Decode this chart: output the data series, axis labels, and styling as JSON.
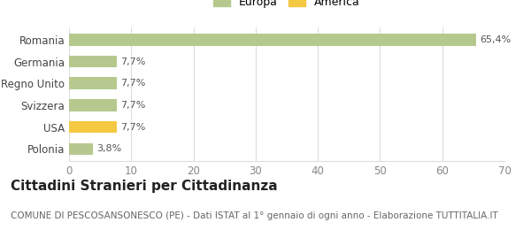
{
  "categories": [
    "Polonia",
    "USA",
    "Svizzera",
    "Regno Unito",
    "Germania",
    "Romania"
  ],
  "values": [
    3.8,
    7.7,
    7.7,
    7.7,
    7.7,
    65.4
  ],
  "labels": [
    "3,8%",
    "7,7%",
    "7,7%",
    "7,7%",
    "7,7%",
    "65,4%"
  ],
  "colors": [
    "#b5c98e",
    "#f5c842",
    "#b5c98e",
    "#b5c98e",
    "#b5c98e",
    "#b5c98e"
  ],
  "legend_items": [
    {
      "label": "Europa",
      "color": "#b5c98e"
    },
    {
      "label": "America",
      "color": "#f5c842"
    }
  ],
  "xlim": [
    0,
    70
  ],
  "xticks": [
    0,
    10,
    20,
    30,
    40,
    50,
    60,
    70
  ],
  "title": "Cittadini Stranieri per Cittadinanza",
  "subtitle": "COMUNE DI PESCOSANSONESCO (PE) - Dati ISTAT al 1° gennaio di ogni anno - Elaborazione TUTTITALIA.IT",
  "background_color": "#ffffff",
  "grid_color": "#dddddd",
  "bar_label_fontsize": 8.0,
  "title_fontsize": 11,
  "subtitle_fontsize": 7.5
}
